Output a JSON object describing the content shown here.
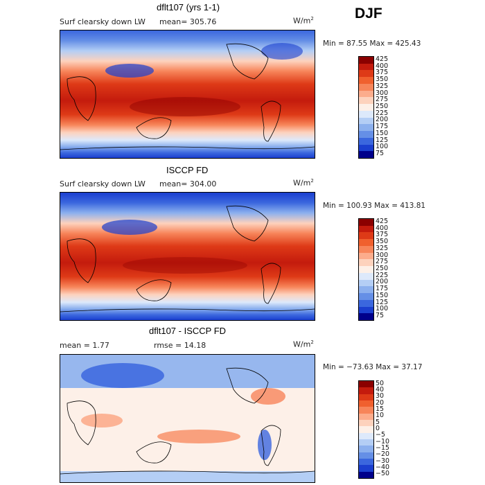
{
  "season": "DJF",
  "panels": [
    {
      "title": "dflt107 (yrs 1-1)",
      "left_label": "Surf clearsky down LW",
      "stat_label": "mean= 305.76",
      "units": "W/m",
      "units_sup": "2",
      "minmax": "Min =  87.55 Max = 425.43"
    },
    {
      "title": "ISCCP FD",
      "left_label": "Surf clearsky down LW",
      "stat_label": "mean= 304.00",
      "units": "W/m",
      "units_sup": "2",
      "minmax": "Min = 100.93 Max = 413.81"
    },
    {
      "title": "dflt107 - ISCCP FD",
      "left_label": "mean =    1.77",
      "stat_label": "rmse =   14.18",
      "units": "W/m",
      "units_sup": "2",
      "minmax": "Min = −73.63 Max =   37.17"
    }
  ],
  "colorbar_abs": {
    "labels": [
      "425",
      "400",
      "375",
      "350",
      "325",
      "300",
      "275",
      "250",
      "225",
      "200",
      "175",
      "150",
      "125",
      "100",
      "75"
    ],
    "colors": [
      "#8b0000",
      "#c41b0d",
      "#de3a17",
      "#f0602e",
      "#f7855a",
      "#fcac8c",
      "#fdd2bd",
      "#fdf0e8",
      "#dde9fb",
      "#b4cef5",
      "#8cb0ee",
      "#658fe6",
      "#3b67de",
      "#1b3fcf",
      "#00008b"
    ]
  },
  "colorbar_diff": {
    "labels": [
      "50",
      "40",
      "30",
      "20",
      "15",
      "10",
      "5",
      "0",
      "−5",
      "−10",
      "−15",
      "−20",
      "−30",
      "−40",
      "−50"
    ],
    "colors": [
      "#8b0000",
      "#c41b0d",
      "#de3a17",
      "#f0602e",
      "#f7855a",
      "#fcac8c",
      "#fdd2bd",
      "#fdf0e8",
      "#dde9fb",
      "#b4cef5",
      "#8cb0ee",
      "#658fe6",
      "#3b67de",
      "#1b3fcf",
      "#00008b"
    ]
  },
  "chart_data": [
    {
      "type": "heatmap",
      "title": "dflt107 (yrs 1-1)",
      "variable": "Surf clearsky down LW",
      "units": "W/m2",
      "season": "DJF",
      "mean": 305.76,
      "min": 87.55,
      "max": 425.43,
      "levels": [
        75,
        100,
        125,
        150,
        175,
        200,
        225,
        250,
        275,
        300,
        325,
        350,
        375,
        400,
        425
      ]
    },
    {
      "type": "heatmap",
      "title": "ISCCP FD",
      "variable": "Surf clearsky down LW",
      "units": "W/m2",
      "season": "DJF",
      "mean": 304.0,
      "min": 100.93,
      "max": 413.81,
      "levels": [
        75,
        100,
        125,
        150,
        175,
        200,
        225,
        250,
        275,
        300,
        325,
        350,
        375,
        400,
        425
      ]
    },
    {
      "type": "heatmap",
      "title": "dflt107 - ISCCP FD",
      "units": "W/m2",
      "season": "DJF",
      "mean": 1.77,
      "rmse": 14.18,
      "min": -73.63,
      "max": 37.17,
      "levels": [
        -50,
        -40,
        -30,
        -20,
        -15,
        -10,
        -5,
        0,
        5,
        10,
        15,
        20,
        30,
        40,
        50
      ]
    }
  ]
}
